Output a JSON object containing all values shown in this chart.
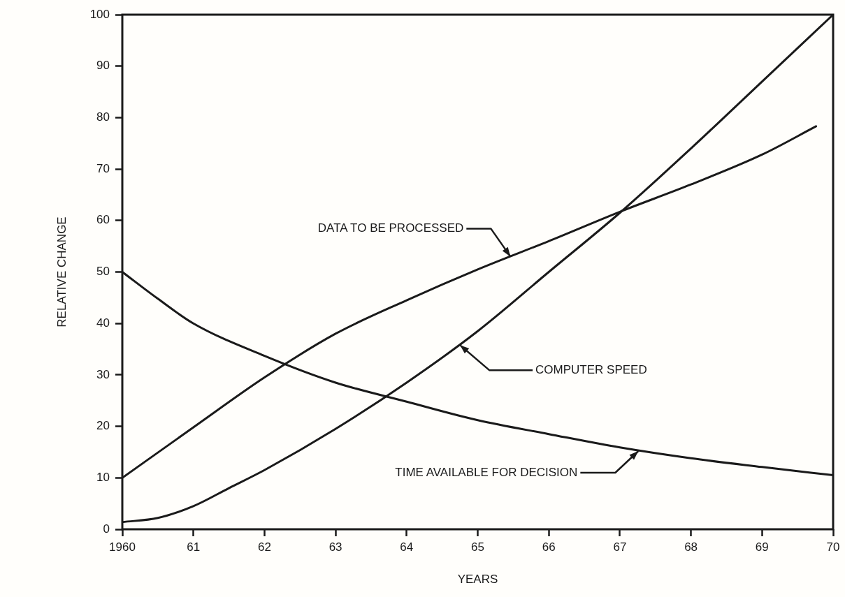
{
  "chart_data": {
    "type": "line",
    "xlabel": "YEARS",
    "ylabel": "RELATIVE CHANGE",
    "xlim": [
      1960,
      1970
    ],
    "xticks": [
      {
        "value": 1960,
        "label": "1960"
      },
      {
        "value": 1961,
        "label": "61"
      },
      {
        "value": 1962,
        "label": "62"
      },
      {
        "value": 1963,
        "label": "63"
      },
      {
        "value": 1964,
        "label": "64"
      },
      {
        "value": 1965,
        "label": "65"
      },
      {
        "value": 1966,
        "label": "66"
      },
      {
        "value": 1967,
        "label": "67"
      },
      {
        "value": 1968,
        "label": "68"
      },
      {
        "value": 1969,
        "label": "69"
      },
      {
        "value": 1970,
        "label": "70"
      }
    ],
    "ylim": [
      0,
      100
    ],
    "yticks": [
      0,
      10,
      20,
      30,
      40,
      50,
      60,
      70,
      80,
      90,
      100
    ],
    "marker": "none",
    "line_style": "solid",
    "legend": false,
    "series": [
      {
        "color": "#1a1a1a",
        "x": [
          1960,
          1961,
          1962,
          1963,
          1964,
          1965,
          1966,
          1967,
          1968,
          1969,
          1969.76
        ],
        "values": [
          10,
          19.8,
          29.5,
          38,
          44.5,
          50.5,
          56,
          61.7,
          67,
          72.8,
          78.3
        ]
      },
      {
        "color": "#1a1a1a",
        "x": [
          1960,
          1960.5,
          1961,
          1961.5,
          1962,
          1963,
          1964,
          1965,
          1966,
          1967,
          1968,
          1969,
          1970
        ],
        "values": [
          1.4,
          2.2,
          4.5,
          8,
          11.5,
          19.5,
          28.5,
          38.5,
          50,
          61.5,
          74,
          87,
          100
        ]
      },
      {
        "color": "#1a1a1a",
        "x": [
          1960,
          1960.5,
          1961,
          1962,
          1963,
          1964,
          1965,
          1966,
          1967,
          1968,
          1969,
          1970
        ],
        "values": [
          50,
          44.8,
          40,
          33.7,
          28.5,
          24.8,
          21.2,
          18.5,
          15.9,
          13.8,
          12.1,
          10.5
        ]
      }
    ],
    "annotations": [
      {
        "text": "DATA TO BE PROCESSED",
        "x": 1965.46,
        "y": 53
      },
      {
        "text": "COMPUTER SPEED",
        "x": 1964.75,
        "y": 35.8
      },
      {
        "text": "TIME AVAILABLE FOR DECISION",
        "x": 1967.26,
        "y": 15.2
      }
    ]
  }
}
